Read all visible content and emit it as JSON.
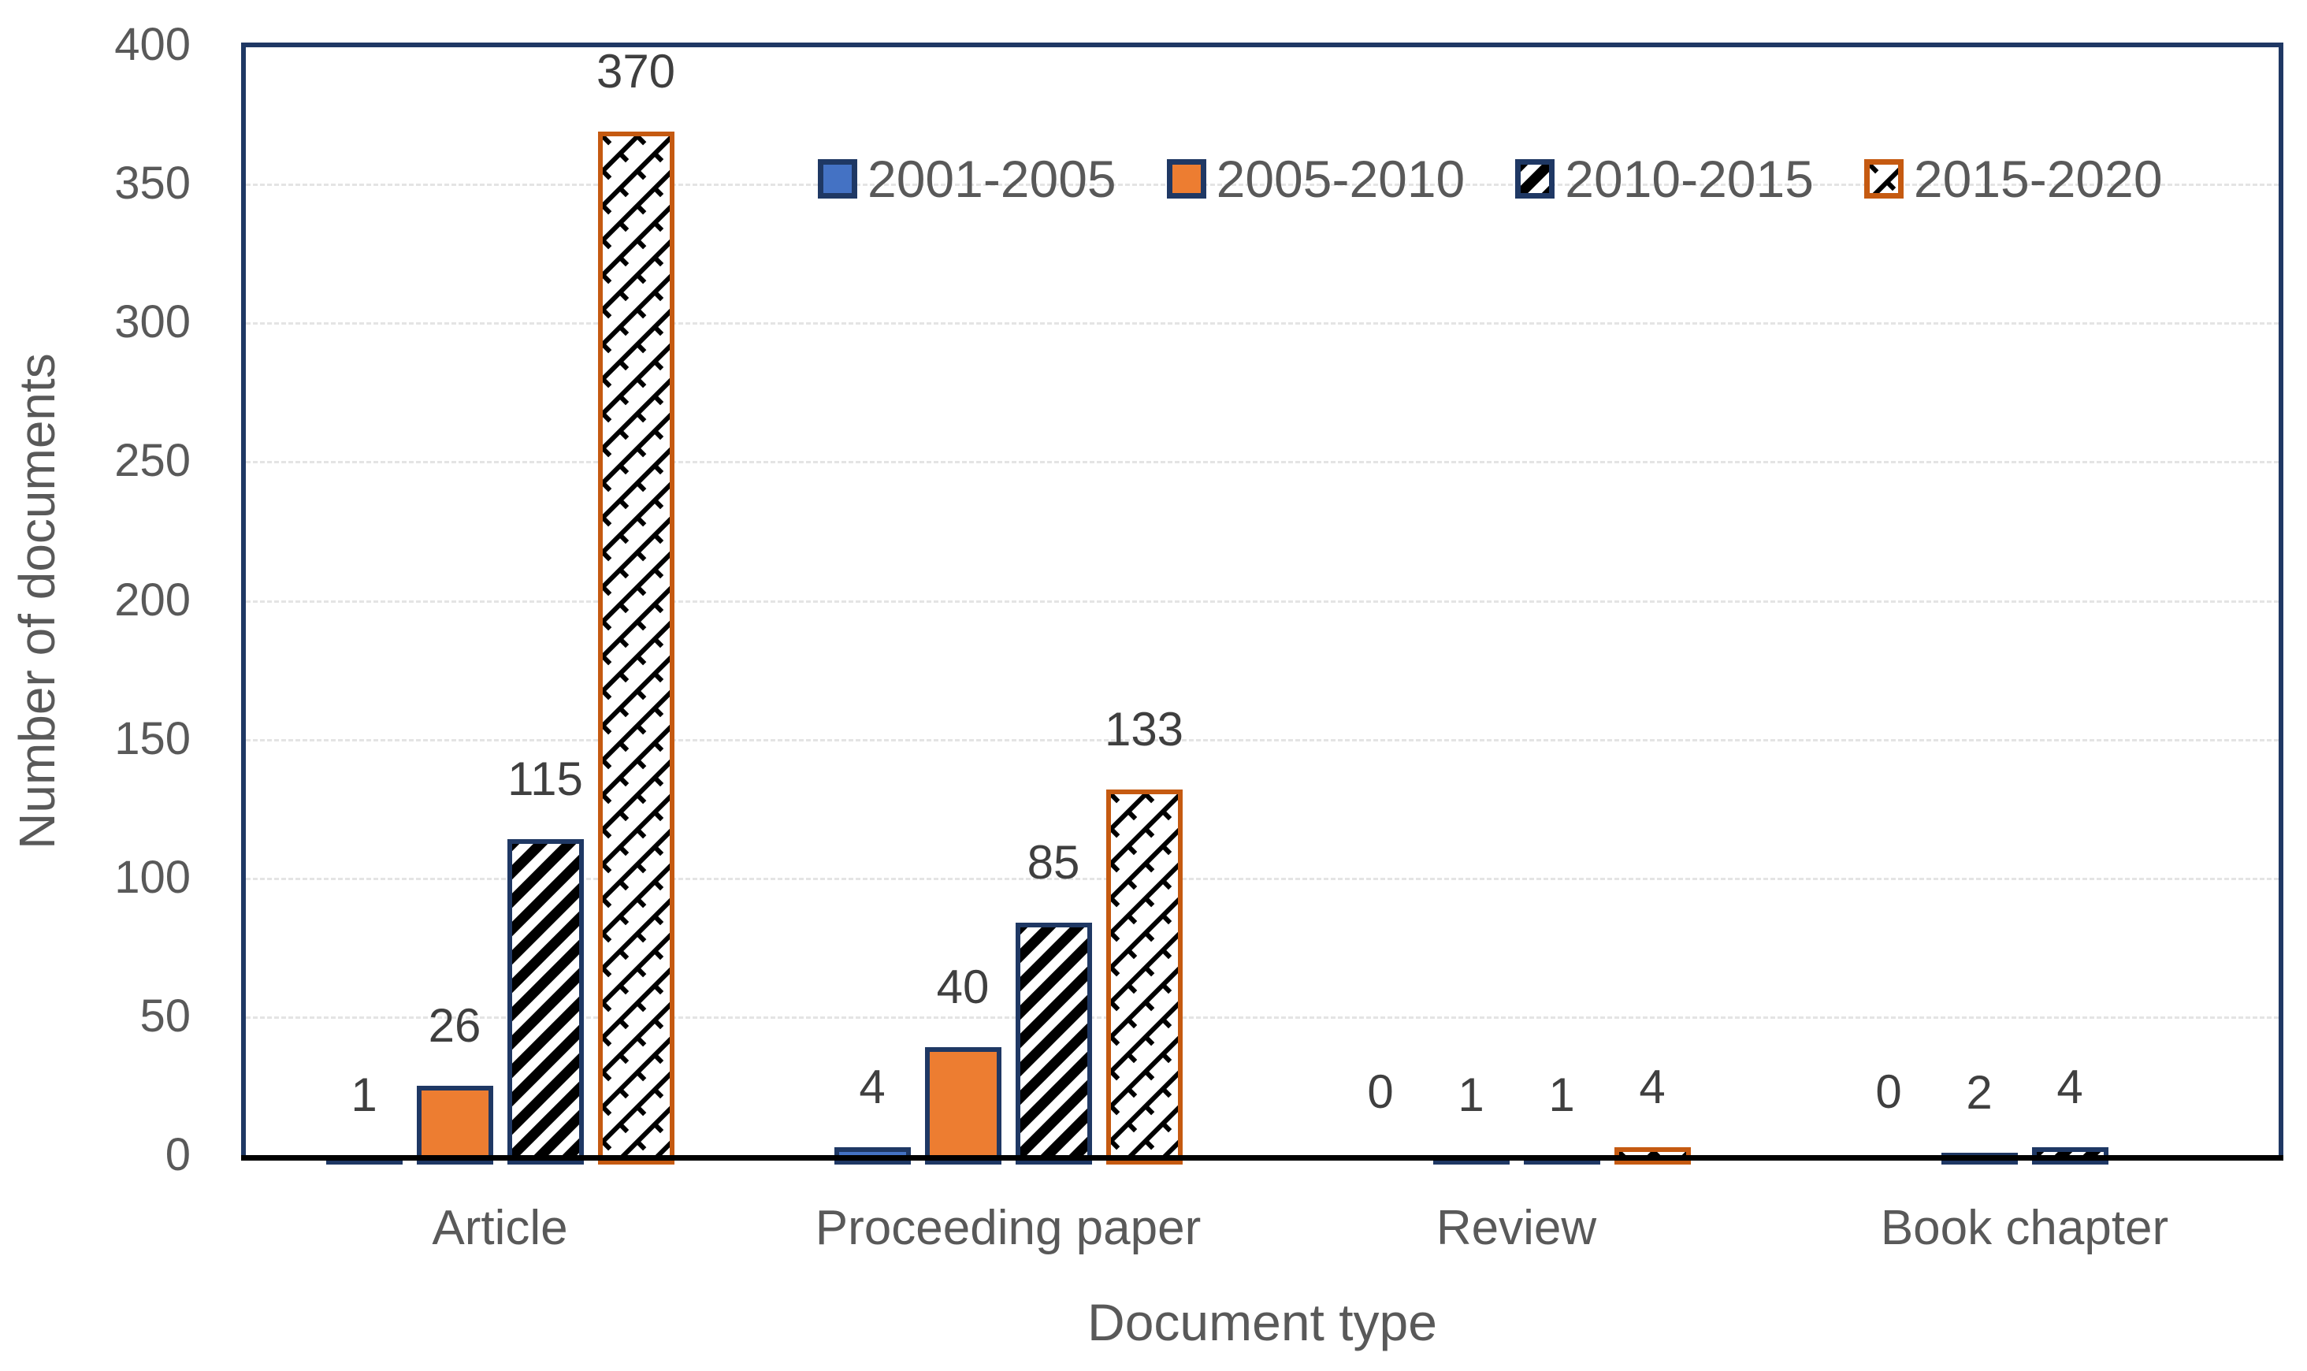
{
  "chart_data": {
    "type": "bar",
    "title": "",
    "xlabel": "Document type",
    "ylabel": "Number of documents",
    "ylim": [
      0,
      400
    ],
    "yticks": [
      0,
      50,
      100,
      150,
      200,
      250,
      300,
      350,
      400
    ],
    "grid": "horizontal-dashed",
    "legend_position": "top-inside",
    "data_labels": true,
    "categories": [
      "Article",
      "Proceeding paper",
      "Review",
      "Book chapter"
    ],
    "series": [
      {
        "name": "2001-2005",
        "pattern": "solid",
        "fill": "#4472C4",
        "border": "#1F3864",
        "values": [
          1,
          4,
          0,
          0
        ]
      },
      {
        "name": "2005-2010",
        "pattern": "solid",
        "fill": "#ED7D31",
        "border": "#1F3864",
        "values": [
          26,
          40,
          1,
          2
        ]
      },
      {
        "name": "2010-2015",
        "pattern": "diagonal-stripe",
        "fill": "#FFFFFF",
        "border": "#1F3864",
        "values": [
          115,
          85,
          1,
          4
        ]
      },
      {
        "name": "2015-2020",
        "pattern": "diagonal-weave",
        "fill": "#FFFFFF",
        "border": "#C55A11",
        "values": [
          370,
          133,
          4,
          null
        ]
      }
    ],
    "colors": {
      "axis_text": "#595959",
      "data_label_text": "#3F3F3F",
      "plot_border": "#1F3864",
      "x_axis_line": "#000000",
      "gridline": "#E4E4E4",
      "stripe_pattern_ink": "#000000"
    }
  }
}
